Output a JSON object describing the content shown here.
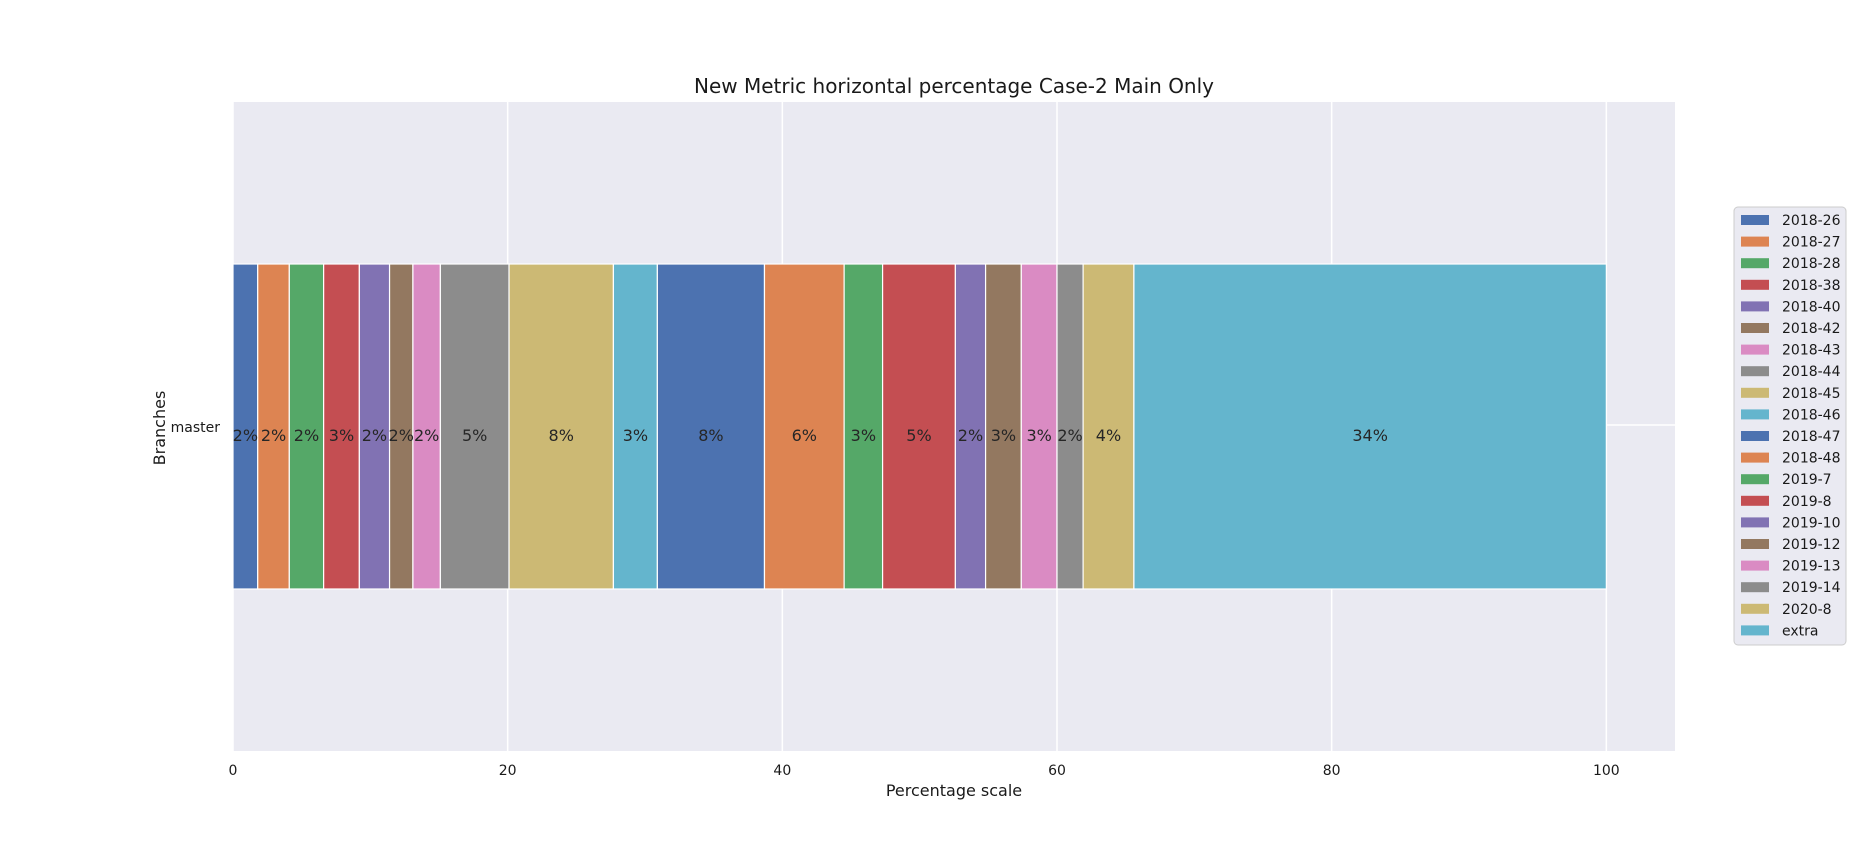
{
  "chart_data": {
    "type": "bar",
    "orientation": "horizontal",
    "stacked": true,
    "title": "New Metric horizontal percentage Case-2 Main Only",
    "xlabel": "Percentage scale",
    "ylabel": "Branches",
    "categories": [
      "master"
    ],
    "xlim": [
      0,
      105
    ],
    "xticks": [
      0,
      20,
      40,
      60,
      80,
      100
    ],
    "grid": true,
    "legend_position": "right",
    "series": [
      {
        "name": "2018-26",
        "values": [
          1.8
        ],
        "label": "2%",
        "color": "#4c72b0"
      },
      {
        "name": "2018-27",
        "values": [
          2.3
        ],
        "label": "2%",
        "color": "#dd8452"
      },
      {
        "name": "2018-28",
        "values": [
          2.5
        ],
        "label": "2%",
        "color": "#55a868"
      },
      {
        "name": "2018-38",
        "values": [
          2.6
        ],
        "label": "3%",
        "color": "#c44e52"
      },
      {
        "name": "2018-40",
        "values": [
          2.2
        ],
        "label": "2%",
        "color": "#8172b3"
      },
      {
        "name": "2018-42",
        "values": [
          1.7
        ],
        "label": "2%",
        "color": "#937860"
      },
      {
        "name": "2018-43",
        "values": [
          2.0
        ],
        "label": "2%",
        "color": "#da8bc3"
      },
      {
        "name": "2018-44",
        "values": [
          5.0
        ],
        "label": "5%",
        "color": "#8c8c8c"
      },
      {
        "name": "2018-45",
        "values": [
          7.6
        ],
        "label": "8%",
        "color": "#ccb974"
      },
      {
        "name": "2018-46",
        "values": [
          3.2
        ],
        "label": "3%",
        "color": "#64b5cd"
      },
      {
        "name": "2018-47",
        "values": [
          7.8
        ],
        "label": "8%",
        "color": "#4c72b0"
      },
      {
        "name": "2018-48",
        "values": [
          5.8
        ],
        "label": "6%",
        "color": "#dd8452"
      },
      {
        "name": "2019-7",
        "values": [
          2.8
        ],
        "label": "3%",
        "color": "#55a868"
      },
      {
        "name": "2019-8",
        "values": [
          5.3
        ],
        "label": "5%",
        "color": "#c44e52"
      },
      {
        "name": "2019-10",
        "values": [
          2.2
        ],
        "label": "2%",
        "color": "#8172b3"
      },
      {
        "name": "2019-12",
        "values": [
          2.6
        ],
        "label": "3%",
        "color": "#937860"
      },
      {
        "name": "2019-13",
        "values": [
          2.6
        ],
        "label": "3%",
        "color": "#da8bc3"
      },
      {
        "name": "2019-14",
        "values": [
          1.9
        ],
        "label": "2%",
        "color": "#8c8c8c"
      },
      {
        "name": "2020-8",
        "values": [
          3.7
        ],
        "label": "4%",
        "color": "#ccb974"
      },
      {
        "name": "extra",
        "values": [
          34.4
        ],
        "label": "34%",
        "color": "#64b5cd"
      }
    ]
  }
}
